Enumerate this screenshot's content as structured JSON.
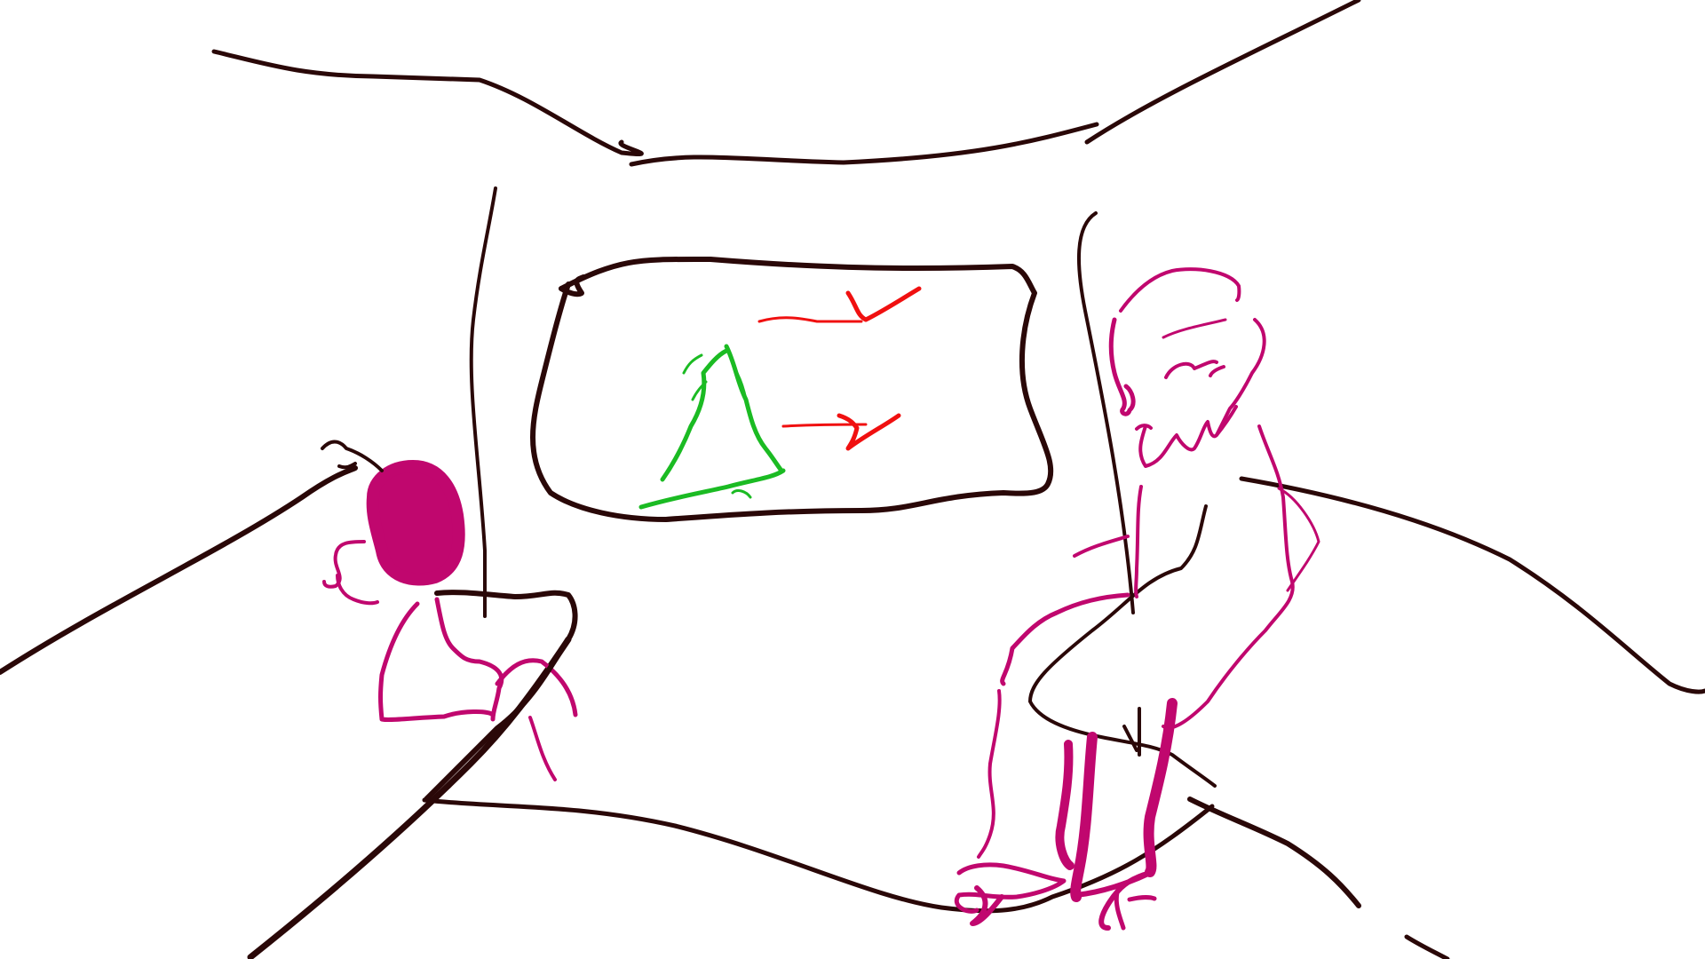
{
  "colors": {
    "background": "#ffffff",
    "outline": "#2a0808",
    "figures": "#c0076e",
    "diagram_tree": "#1bbb23",
    "diagram_arrows": "#f01010"
  },
  "scene": {
    "room": {},
    "wall_board": {},
    "child_figure": {},
    "adult_figure": {},
    "chair": {}
  }
}
